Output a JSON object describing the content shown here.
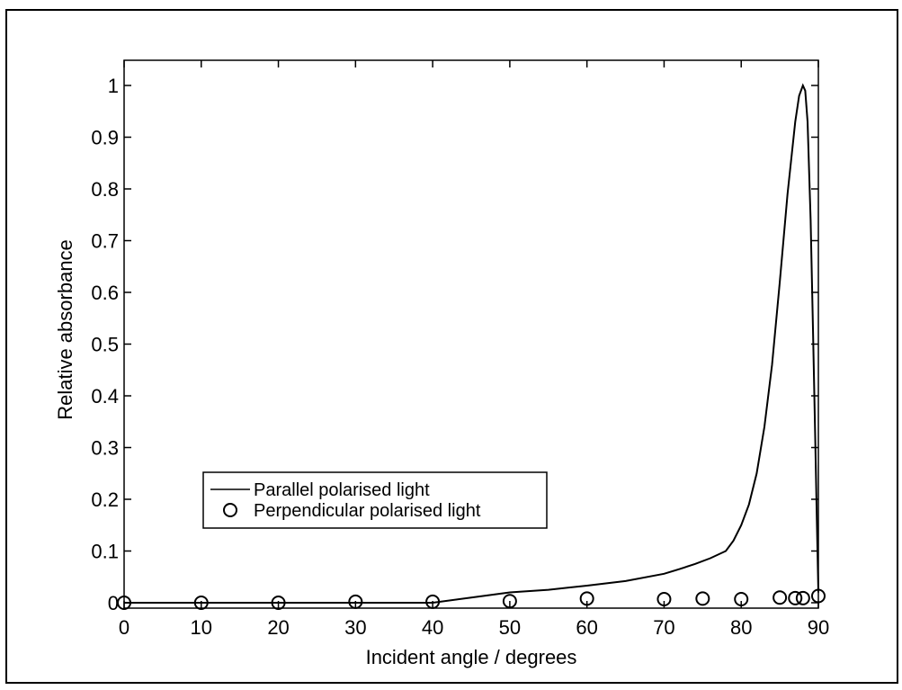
{
  "chart_data": {
    "type": "line",
    "title": "",
    "xlabel": "Incident angle / degrees",
    "ylabel": "Relative absorbance",
    "xlim": [
      0,
      90
    ],
    "ylim": [
      0,
      1
    ],
    "x_ticks": [
      0,
      10,
      20,
      30,
      40,
      50,
      60,
      70,
      80,
      90
    ],
    "y_ticks": [
      0,
      0.1,
      0.2,
      0.3,
      0.4,
      0.5,
      0.6,
      0.7,
      0.8,
      0.9,
      1
    ],
    "y_tick_labels": [
      "0",
      "0.1",
      "0.2",
      "0.3",
      "0.4",
      "0.5",
      "0.6",
      "0.7",
      "0.8",
      "0.9",
      "1"
    ],
    "x_tick_labels": [
      "0",
      "10",
      "20",
      "30",
      "40",
      "50",
      "60",
      "70",
      "80",
      "90"
    ],
    "grid": false,
    "legend_position": "center-left",
    "series": [
      {
        "name": "Parallel polarised light",
        "style": "line",
        "color": "#000000",
        "x": [
          0,
          10,
          20,
          30,
          40,
          45,
          50,
          55,
          60,
          65,
          70,
          72,
          74,
          76,
          78,
          79,
          80,
          81,
          82,
          83,
          84,
          85,
          86,
          87,
          87.5,
          88,
          88.3,
          88.6,
          89,
          89.3,
          89.6,
          89.8,
          90
        ],
        "y": [
          0,
          0,
          0,
          0,
          0,
          0.01,
          0.02,
          0.025,
          0.033,
          0.042,
          0.056,
          0.065,
          0.075,
          0.086,
          0.1,
          0.12,
          0.15,
          0.19,
          0.25,
          0.34,
          0.46,
          0.62,
          0.79,
          0.93,
          0.98,
          1.0,
          0.99,
          0.93,
          0.74,
          0.53,
          0.31,
          0.16,
          0.02
        ]
      },
      {
        "name": "Perpendicular polarised light",
        "style": "marker-circle",
        "color": "#000000",
        "x": [
          0,
          10,
          20,
          30,
          40,
          50,
          60,
          70,
          75,
          80,
          85,
          87,
          88,
          90
        ],
        "y": [
          0,
          0,
          0,
          0.002,
          0.002,
          0.003,
          0.008,
          0.007,
          0.008,
          0.007,
          0.01,
          0.009,
          0.009,
          0.013
        ]
      }
    ]
  }
}
